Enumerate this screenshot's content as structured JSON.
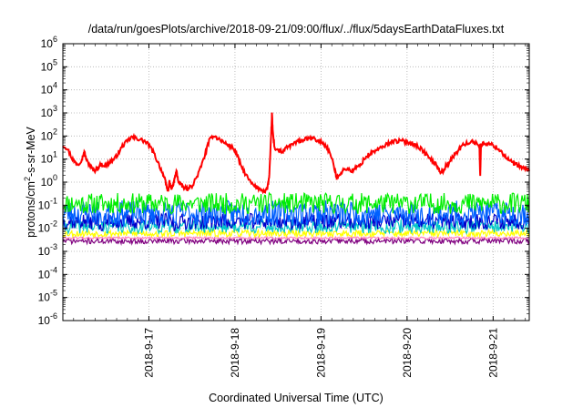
{
  "chart_data": {
    "type": "line",
    "title": "/data/run/goesPlots/archive/2018-09-21/09:00/flux/../flux/5daysEarthDataFluxes.txt",
    "xlabel": "Coordinated Universal Time (UTC)",
    "ylabel_base": "protons/cm",
    "ylabel_sup": "2",
    "ylabel_tail": "-s-sr-MeV",
    "y_scale": "log",
    "ylim": [
      1e-06,
      1000000.0
    ],
    "xlim": [
      0.0,
      5.42
    ],
    "x_unit": "days since 2018-9-16 00:00 UTC",
    "grid": true,
    "y_ticks": [
      {
        "exp": -6,
        "label_base": "10",
        "label_exp": "-6"
      },
      {
        "exp": -5,
        "label_base": "10",
        "label_exp": "-5"
      },
      {
        "exp": -4,
        "label_base": "10",
        "label_exp": "-4"
      },
      {
        "exp": -3,
        "label_base": "10",
        "label_exp": "-3"
      },
      {
        "exp": -2,
        "label_base": "10",
        "label_exp": "-2"
      },
      {
        "exp": -1,
        "label_base": "10",
        "label_exp": "-1"
      },
      {
        "exp": 0,
        "label_base": "10",
        "label_exp": "0"
      },
      {
        "exp": 1,
        "label_base": "10",
        "label_exp": "1"
      },
      {
        "exp": 2,
        "label_base": "10",
        "label_exp": "2"
      },
      {
        "exp": 3,
        "label_base": "10",
        "label_exp": "3"
      },
      {
        "exp": 4,
        "label_base": "10",
        "label_exp": "4"
      },
      {
        "exp": 5,
        "label_base": "10",
        "label_exp": "5"
      },
      {
        "exp": 6,
        "label_base": "10",
        "label_exp": "6"
      }
    ],
    "x_ticks": [
      {
        "x": 1.0,
        "label": "2018-9-17"
      },
      {
        "x": 2.0,
        "label": "2018-9-18"
      },
      {
        "x": 3.0,
        "label": "2018-9-19"
      },
      {
        "x": 4.0,
        "label": "2018-9-20"
      },
      {
        "x": 5.0,
        "label": "2018-9-21"
      }
    ],
    "series": [
      {
        "color": "#ff0000",
        "style": "primary",
        "points": [
          [
            0.0,
            40
          ],
          [
            0.05,
            30
          ],
          [
            0.1,
            12
          ],
          [
            0.13,
            8
          ],
          [
            0.18,
            6
          ],
          [
            0.22,
            10
          ],
          [
            0.25,
            20
          ],
          [
            0.28,
            8
          ],
          [
            0.32,
            5
          ],
          [
            0.36,
            3
          ],
          [
            0.4,
            4
          ],
          [
            0.45,
            6
          ],
          [
            0.5,
            5
          ],
          [
            0.55,
            8
          ],
          [
            0.6,
            10
          ],
          [
            0.65,
            20
          ],
          [
            0.7,
            40
          ],
          [
            0.75,
            60
          ],
          [
            0.8,
            90
          ],
          [
            0.85,
            80
          ],
          [
            0.9,
            70
          ],
          [
            0.95,
            60
          ],
          [
            1.0,
            40
          ],
          [
            1.05,
            20
          ],
          [
            1.1,
            8
          ],
          [
            1.15,
            3
          ],
          [
            1.18,
            1.5
          ],
          [
            1.2,
            0.8
          ],
          [
            1.22,
            0.4
          ],
          [
            1.24,
            1.0
          ],
          [
            1.26,
            0.5
          ],
          [
            1.28,
            0.7
          ],
          [
            1.3,
            1.5
          ],
          [
            1.32,
            3
          ],
          [
            1.34,
            1.2
          ],
          [
            1.36,
            0.8
          ],
          [
            1.4,
            0.6
          ],
          [
            1.45,
            0.5
          ],
          [
            1.5,
            0.7
          ],
          [
            1.55,
            1.5
          ],
          [
            1.6,
            4
          ],
          [
            1.65,
            15
          ],
          [
            1.7,
            60
          ],
          [
            1.75,
            110
          ],
          [
            1.8,
            80
          ],
          [
            1.85,
            60
          ],
          [
            1.9,
            45
          ],
          [
            1.95,
            35
          ],
          [
            2.0,
            25
          ],
          [
            2.05,
            8
          ],
          [
            2.1,
            3
          ],
          [
            2.15,
            1.5
          ],
          [
            2.2,
            0.8
          ],
          [
            2.25,
            0.6
          ],
          [
            2.3,
            0.5
          ],
          [
            2.35,
            0.4
          ],
          [
            2.38,
            0.6
          ],
          [
            2.4,
            2
          ],
          [
            2.42,
            100
          ],
          [
            2.43,
            900
          ],
          [
            2.44,
            150
          ],
          [
            2.46,
            30
          ],
          [
            2.5,
            25
          ],
          [
            2.55,
            20
          ],
          [
            2.6,
            30
          ],
          [
            2.65,
            40
          ],
          [
            2.7,
            50
          ],
          [
            2.75,
            60
          ],
          [
            2.8,
            70
          ],
          [
            2.85,
            75
          ],
          [
            2.9,
            80
          ],
          [
            2.95,
            65
          ],
          [
            3.0,
            55
          ],
          [
            3.05,
            40
          ],
          [
            3.1,
            20
          ],
          [
            3.15,
            5
          ],
          [
            3.18,
            1.5
          ],
          [
            3.2,
            2
          ],
          [
            3.25,
            3
          ],
          [
            3.3,
            4
          ],
          [
            3.35,
            3
          ],
          [
            3.4,
            4
          ],
          [
            3.45,
            5
          ],
          [
            3.5,
            10
          ],
          [
            3.55,
            15
          ],
          [
            3.6,
            20
          ],
          [
            3.65,
            25
          ],
          [
            3.7,
            30
          ],
          [
            3.75,
            40
          ],
          [
            3.8,
            55
          ],
          [
            3.85,
            60
          ],
          [
            3.9,
            60
          ],
          [
            3.95,
            60
          ],
          [
            4.0,
            55
          ],
          [
            4.05,
            50
          ],
          [
            4.1,
            40
          ],
          [
            4.15,
            30
          ],
          [
            4.2,
            20
          ],
          [
            4.25,
            12
          ],
          [
            4.3,
            8
          ],
          [
            4.35,
            5
          ],
          [
            4.38,
            3
          ],
          [
            4.42,
            3
          ],
          [
            4.45,
            5
          ],
          [
            4.5,
            8
          ],
          [
            4.55,
            15
          ],
          [
            4.6,
            25
          ],
          [
            4.65,
            40
          ],
          [
            4.7,
            50
          ],
          [
            4.75,
            55
          ],
          [
            4.8,
            50
          ],
          [
            4.84,
            40
          ],
          [
            4.85,
            2
          ],
          [
            4.86,
            40
          ],
          [
            4.9,
            50
          ],
          [
            4.95,
            45
          ],
          [
            5.0,
            40
          ],
          [
            5.05,
            30
          ],
          [
            5.1,
            20
          ],
          [
            5.15,
            12
          ],
          [
            5.2,
            8
          ],
          [
            5.25,
            6
          ],
          [
            5.3,
            5
          ],
          [
            5.35,
            4
          ],
          [
            5.4,
            3.5
          ],
          [
            5.42,
            3
          ]
        ]
      },
      {
        "color": "#00ee00",
        "style": "noise",
        "level": 0.12,
        "amp": 0.45,
        "seed": 11,
        "dips": []
      },
      {
        "color": "#0060ff",
        "style": "noise",
        "level": 0.045,
        "amp": 0.55,
        "seed": 23,
        "dips": [
          3.7,
          4.2,
          1.3,
          0.45
        ]
      },
      {
        "color": "#0000cc",
        "style": "noise",
        "level": 0.02,
        "amp": 0.35,
        "seed": 37,
        "dips": [
          1.3,
          0.45
        ]
      },
      {
        "color": "#00c8c8",
        "style": "noise",
        "level": 0.012,
        "amp": 0.3,
        "seed": 41,
        "dips": []
      },
      {
        "color": "#ffff00",
        "style": "noise",
        "level": 0.006,
        "amp": 0.15,
        "seed": 53,
        "dips": []
      },
      {
        "color": "#ff80c0",
        "style": "noise",
        "level": 0.0038,
        "amp": 0.05,
        "seed": 61,
        "dips": []
      },
      {
        "color": "#800080",
        "style": "noise",
        "level": 0.0028,
        "amp": 0.12,
        "seed": 71,
        "dips": []
      }
    ]
  }
}
